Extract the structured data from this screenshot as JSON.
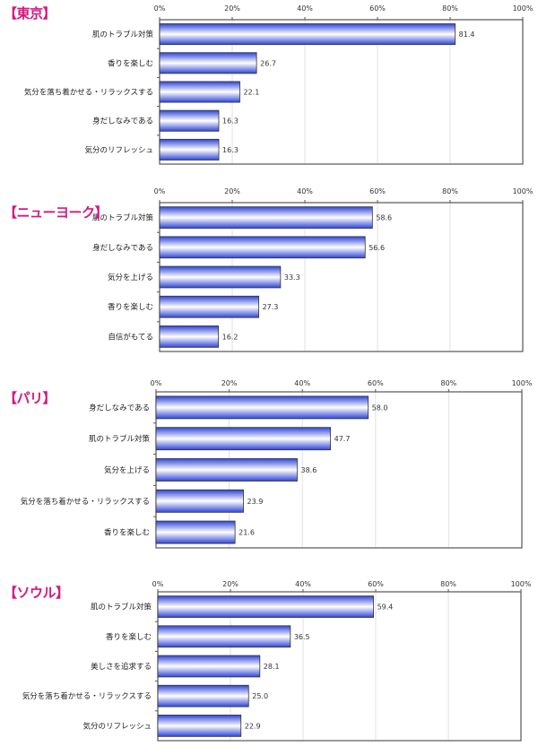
{
  "chart_data": [
    {
      "type": "bar",
      "title": "【東京】",
      "categories": [
        "肌のトラブル対策",
        "香りを楽しむ",
        "気分を落ち着かせる・リラックスする",
        "身だしなみである",
        "気分のリフレッシュ"
      ],
      "values": [
        81.4,
        26.7,
        22.1,
        16.3,
        16.3
      ],
      "value_labels": [
        "81.4",
        "26.7",
        "22.1",
        "16.3",
        "16.3"
      ],
      "xlim": [
        0,
        100
      ],
      "ticks": [
        "0%",
        "20%",
        "40%",
        "60%",
        "80%",
        "100%"
      ],
      "grid": true
    },
    {
      "type": "bar",
      "title": "【ニューヨーク】",
      "categories": [
        "肌のトラブル対策",
        "身だしなみである",
        "気分を上げる",
        "香りを楽しむ",
        "自信がもてる"
      ],
      "values": [
        58.6,
        56.6,
        33.3,
        27.3,
        16.2
      ],
      "value_labels": [
        "58.6",
        "56.6",
        "33.3",
        "27.3",
        "16.2"
      ],
      "xlim": [
        0,
        100
      ],
      "ticks": [
        "0%",
        "20%",
        "40%",
        "60%",
        "80%",
        "100%"
      ],
      "grid": true
    },
    {
      "type": "bar",
      "title": "【パリ】",
      "categories": [
        "身だしなみである",
        "肌のトラブル対策",
        "気分を上げる",
        "気分を落ち着かせる・リラックスする",
        "香りを楽しむ"
      ],
      "values": [
        58.0,
        47.7,
        38.6,
        23.9,
        21.6
      ],
      "value_labels": [
        "58.0",
        "47.7",
        "38.6",
        "23.9",
        "21.6"
      ],
      "xlim": [
        0,
        100
      ],
      "ticks": [
        "0%",
        "20%",
        "40%",
        "60%",
        "80%",
        "100%"
      ],
      "grid": true
    },
    {
      "type": "bar",
      "title": "【ソウル】",
      "categories": [
        "肌のトラブル対策",
        "香りを楽しむ",
        "美しさを追求する",
        "気分を落ち着かせる・リラックスする",
        "気分のリフレッシュ"
      ],
      "values": [
        59.4,
        36.5,
        28.1,
        25.0,
        22.9
      ],
      "value_labels": [
        "59.4",
        "36.5",
        "28.1",
        "25.0",
        "22.9"
      ],
      "xlim": [
        0,
        100
      ],
      "ticks": [
        "0%",
        "20%",
        "40%",
        "60%",
        "80%",
        "100%"
      ],
      "grid": true
    }
  ],
  "colors": {
    "title": "#d6177f",
    "bar_edge": "#2f45d8",
    "bar_mid": "#ffffff",
    "grid": "#e0e0e0"
  }
}
